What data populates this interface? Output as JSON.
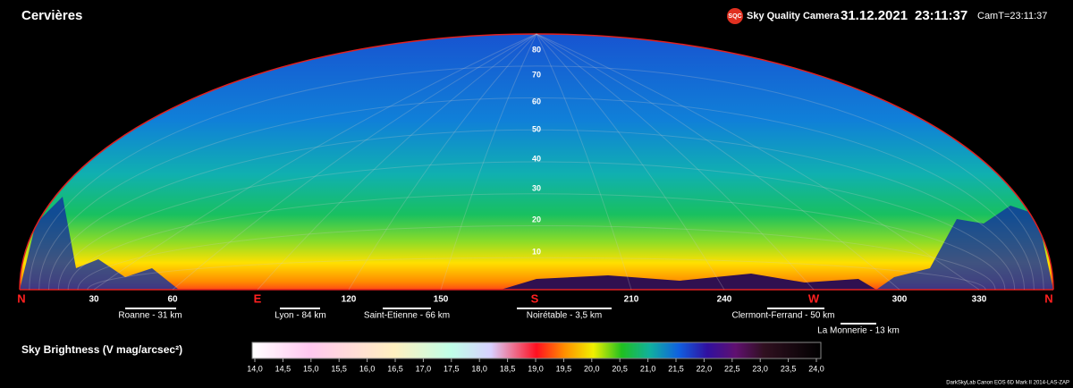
{
  "header": {
    "title": "Cervières",
    "logo": "SQC",
    "product": "Sky Quality Camera",
    "date": "31.12.2021",
    "time": "23:11:37",
    "cam_time": "CamT=23:11:37"
  },
  "azimuth_labels": [
    "N",
    "30",
    "60",
    "E",
    "120",
    "150",
    "S",
    "210",
    "240",
    "W",
    "300",
    "330",
    "N"
  ],
  "altitude_labels": [
    "10",
    "20",
    "30",
    "40",
    "50",
    "60",
    "70",
    "80"
  ],
  "towns": [
    "Roanne - 31 km",
    "Lyon - 84 km",
    "Saint-Etienne - 66 km",
    "Noirétable - 3,5 km",
    "Clermont-Ferrand - 50 km",
    "La Monnerie - 13 km"
  ],
  "colorbar": {
    "label": "Sky Brightness (V mag/arcsec²)",
    "ticks": [
      "14,0",
      "14,5",
      "15,0",
      "15,5",
      "16,0",
      "16,5",
      "17,0",
      "17,5",
      "18,0",
      "18,5",
      "19,0",
      "19,5",
      "20,0",
      "20,5",
      "21,0",
      "21,5",
      "22,0",
      "22,5",
      "23,0",
      "23,5",
      "24,0"
    ]
  },
  "footer": "DarkSkyLab   Canon EOS 6D Mark II   2014-LAS-ZAP"
}
